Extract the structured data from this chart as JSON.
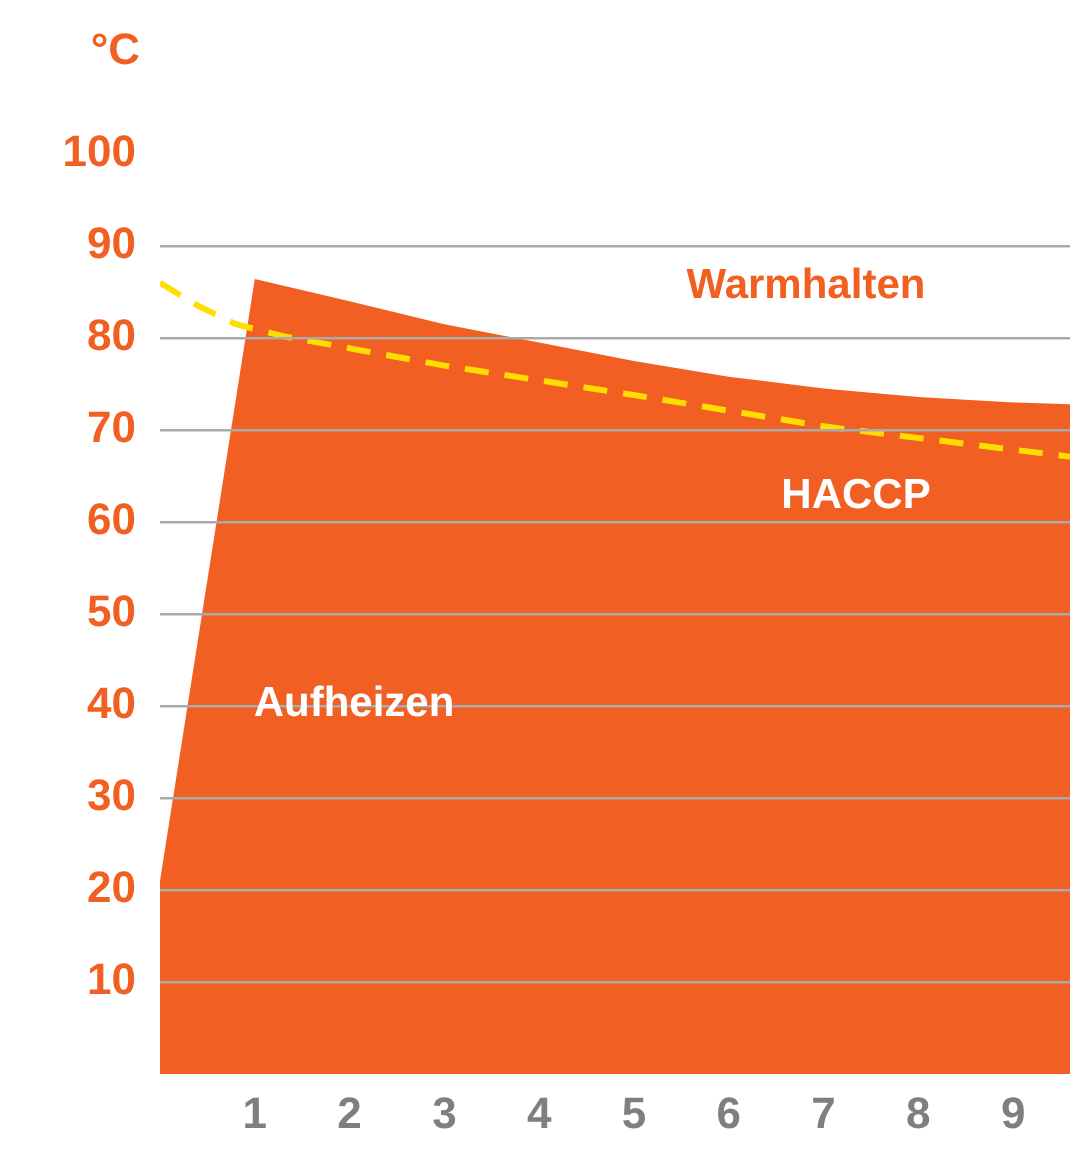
{
  "chart_data": {
    "type": "area",
    "ylabel": "°C",
    "xlim": [
      0,
      9.6
    ],
    "xticks": [
      1,
      2,
      3,
      4,
      5,
      6,
      7,
      8,
      9
    ],
    "ylim": [
      0,
      100
    ],
    "yticks": [
      10,
      20,
      30,
      40,
      50,
      60,
      70,
      80,
      90,
      100
    ],
    "grid": "y",
    "legend": false,
    "marker": "none",
    "series": [
      {
        "color": "#f15f22",
        "x": [
          0,
          1,
          2,
          3,
          4,
          5,
          6,
          7,
          8,
          9,
          9.6
        ],
        "values": [
          21,
          86.4,
          84,
          81.5,
          79.5,
          77.5,
          75.8,
          74.5,
          73.6,
          73,
          72.8
        ]
      },
      {
        "type": "line",
        "color": "#ffdd00",
        "line_style": "dashed",
        "x": [
          0,
          0.4,
          0.8,
          1.3,
          3,
          5,
          7,
          9.6
        ],
        "values": [
          86,
          83.5,
          81.5,
          80.2,
          77,
          73.8,
          70.4,
          67.1
        ]
      }
    ],
    "annotations": [
      "Warmhalten",
      "HACCP",
      "Aufheizen"
    ]
  }
}
